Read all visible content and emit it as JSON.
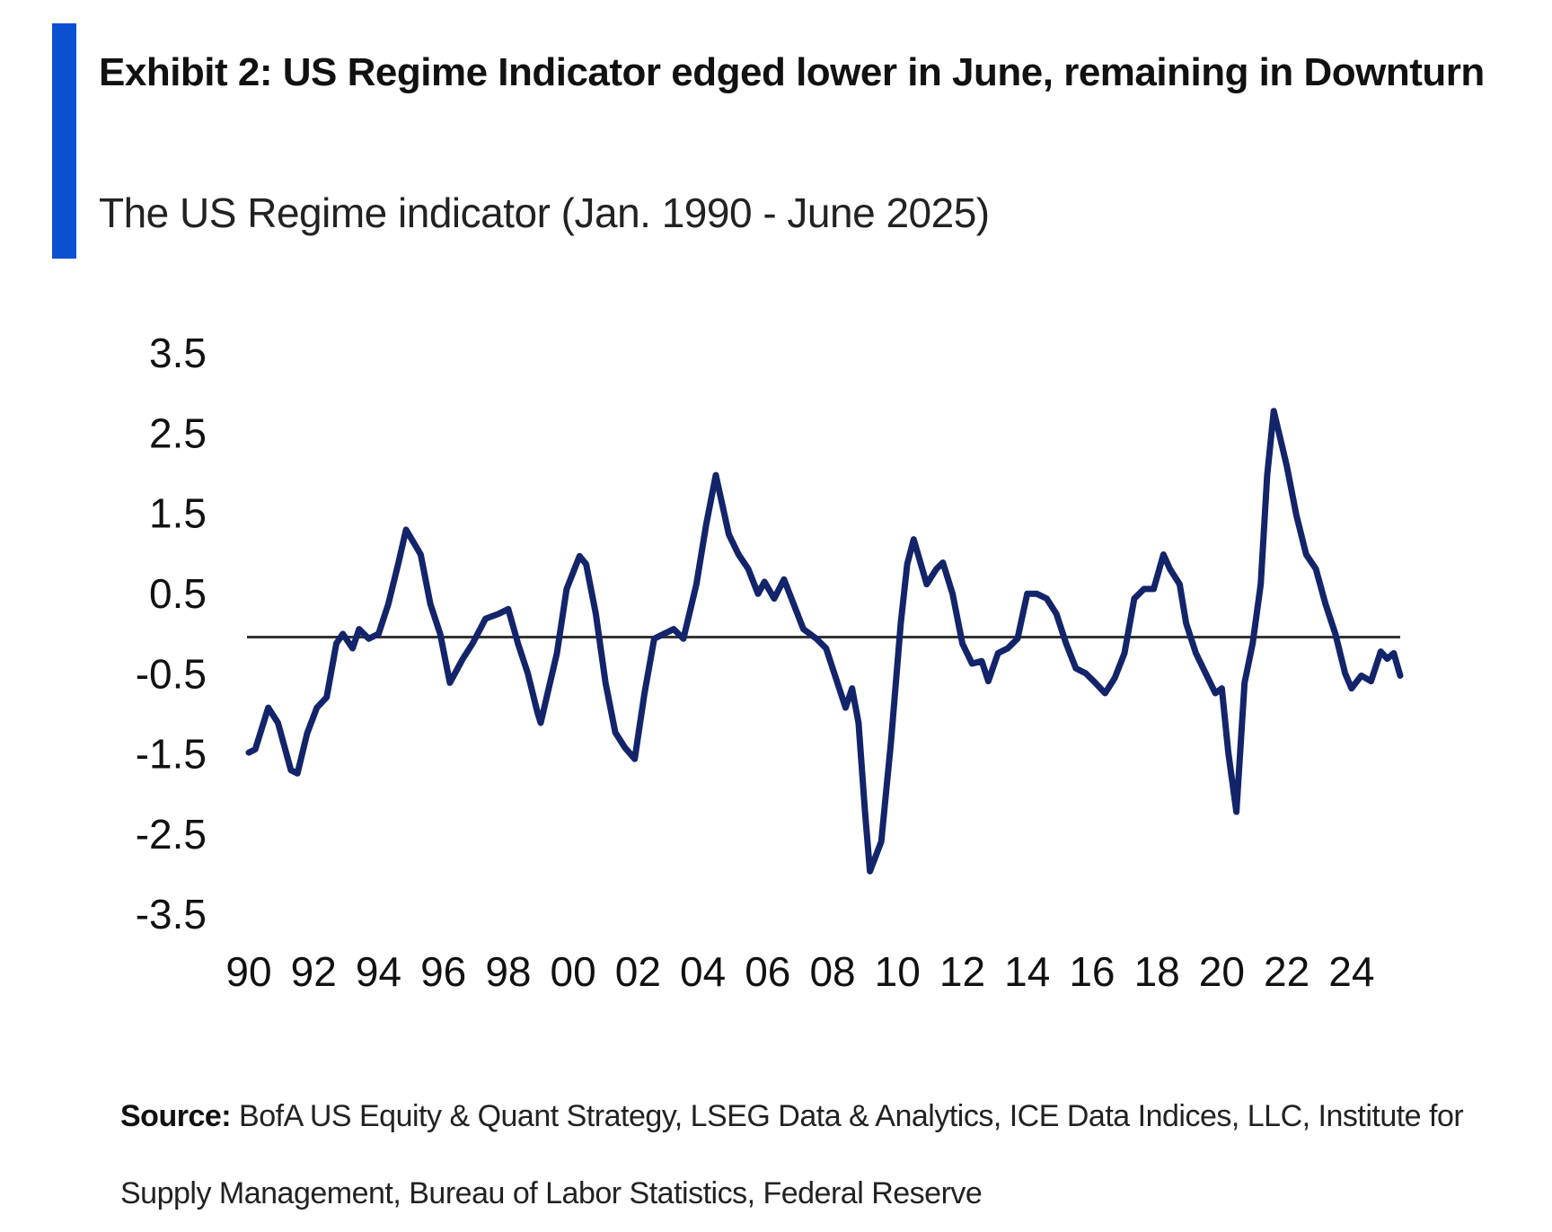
{
  "chart_data": {
    "type": "line",
    "title": "Exhibit 2: US Regime Indicator edged lower in June, remaining in Downturn",
    "subtitle": "The US Regime indicator (Jan. 1990 - June 2025)",
    "source_label": "Source:",
    "source": "BofA US Equity & Quant Strategy, LSEG Data & Analytics, ICE Data Indices, LLC, Institute for Supply Management, Bureau of Labor Statistics, Federal Reserve",
    "color": "#13246b",
    "x": [
      1990.0,
      1990.2,
      1990.6,
      1990.9,
      1991.3,
      1991.5,
      1991.8,
      1992.1,
      1992.4,
      1992.7,
      1992.9,
      1993.2,
      1993.4,
      1993.7,
      1994.0,
      1994.3,
      1994.6,
      1994.85,
      1995.3,
      1995.6,
      1995.9,
      1996.2,
      1996.6,
      1996.9,
      1997.3,
      1997.7,
      1998.0,
      1998.3,
      1998.6,
      1998.9,
      1999.0,
      1999.5,
      1999.8,
      2000.2,
      2000.4,
      2000.7,
      2001.0,
      2001.3,
      2001.6,
      2001.9,
      2002.2,
      2002.5,
      2002.8,
      2003.1,
      2003.4,
      2003.8,
      2004.1,
      2004.4,
      2004.8,
      2005.1,
      2005.4,
      2005.7,
      2005.9,
      2006.2,
      2006.5,
      2006.8,
      2007.1,
      2007.5,
      2007.8,
      2008.1,
      2008.4,
      2008.6,
      2008.8,
      2009.0,
      2009.15,
      2009.5,
      2009.8,
      2010.1,
      2010.3,
      2010.5,
      2010.9,
      2011.2,
      2011.4,
      2011.7,
      2012.0,
      2012.3,
      2012.6,
      2012.8,
      2013.1,
      2013.4,
      2013.7,
      2014.0,
      2014.3,
      2014.6,
      2014.9,
      2015.2,
      2015.5,
      2015.8,
      2016.1,
      2016.4,
      2016.7,
      2017.0,
      2017.3,
      2017.6,
      2017.9,
      2018.2,
      2018.4,
      2018.7,
      2018.9,
      2019.2,
      2019.5,
      2019.8,
      2020.0,
      2020.2,
      2020.45,
      2020.7,
      2020.95,
      2021.2,
      2021.4,
      2021.6,
      2022.0,
      2022.3,
      2022.6,
      2022.9,
      2023.2,
      2023.5,
      2023.8,
      2024.0,
      2024.3,
      2024.6,
      2024.9,
      2025.1,
      2025.3,
      2025.5
    ],
    "values": [
      -1.44,
      -1.4,
      -0.88,
      -1.07,
      -1.66,
      -1.7,
      -1.2,
      -0.88,
      -0.75,
      -0.08,
      0.04,
      -0.14,
      0.1,
      -0.02,
      0.04,
      0.41,
      0.9,
      1.34,
      1.03,
      0.41,
      0.04,
      -0.57,
      -0.27,
      -0.08,
      0.23,
      0.29,
      0.35,
      -0.08,
      -0.45,
      -0.94,
      -1.07,
      -0.2,
      0.6,
      1.01,
      0.91,
      0.29,
      -0.57,
      -1.19,
      -1.38,
      -1.52,
      -0.7,
      -0.02,
      0.04,
      0.1,
      -0.02,
      0.66,
      1.4,
      2.02,
      1.28,
      1.03,
      0.85,
      0.54,
      0.69,
      0.48,
      0.72,
      0.41,
      0.1,
      -0.02,
      -0.14,
      -0.51,
      -0.88,
      -0.64,
      -1.07,
      -2.18,
      -2.92,
      -2.55,
      -1.31,
      0.17,
      0.91,
      1.22,
      0.66,
      0.85,
      0.93,
      0.54,
      -0.08,
      -0.33,
      -0.3,
      -0.55,
      -0.2,
      -0.14,
      -0.02,
      0.54,
      0.54,
      0.48,
      0.29,
      -0.08,
      -0.39,
      -0.45,
      -0.57,
      -0.7,
      -0.51,
      -0.2,
      0.48,
      0.6,
      0.6,
      1.03,
      0.85,
      0.66,
      0.17,
      -0.2,
      -0.45,
      -0.7,
      -0.64,
      -1.44,
      -2.18,
      -0.57,
      -0.08,
      0.66,
      2.02,
      2.82,
      2.14,
      1.52,
      1.03,
      0.85,
      0.41,
      0.04,
      -0.45,
      -0.64,
      -0.48,
      -0.55,
      -0.18,
      -0.27,
      -0.2,
      -0.48
    ],
    "xlim": [
      1990,
      2025.5
    ],
    "xticks": [
      {
        "value": 1990,
        "label": "90"
      },
      {
        "value": 1992,
        "label": "92"
      },
      {
        "value": 1994,
        "label": "94"
      },
      {
        "value": 1996,
        "label": "96"
      },
      {
        "value": 1998,
        "label": "98"
      },
      {
        "value": 2000,
        "label": "00"
      },
      {
        "value": 2002,
        "label": "02"
      },
      {
        "value": 2004,
        "label": "04"
      },
      {
        "value": 2006,
        "label": "06"
      },
      {
        "value": 2008,
        "label": "08"
      },
      {
        "value": 2010,
        "label": "10"
      },
      {
        "value": 2012,
        "label": "12"
      },
      {
        "value": 2014,
        "label": "14"
      },
      {
        "value": 2016,
        "label": "16"
      },
      {
        "value": 2018,
        "label": "18"
      },
      {
        "value": 2020,
        "label": "20"
      },
      {
        "value": 2022,
        "label": "22"
      },
      {
        "value": 2024,
        "label": "24"
      }
    ],
    "ylim": [
      -3.5,
      3.5
    ],
    "yticks": [
      3.5,
      2.5,
      1.5,
      0.5,
      -0.5,
      -1.5,
      -2.5,
      -3.5
    ]
  }
}
